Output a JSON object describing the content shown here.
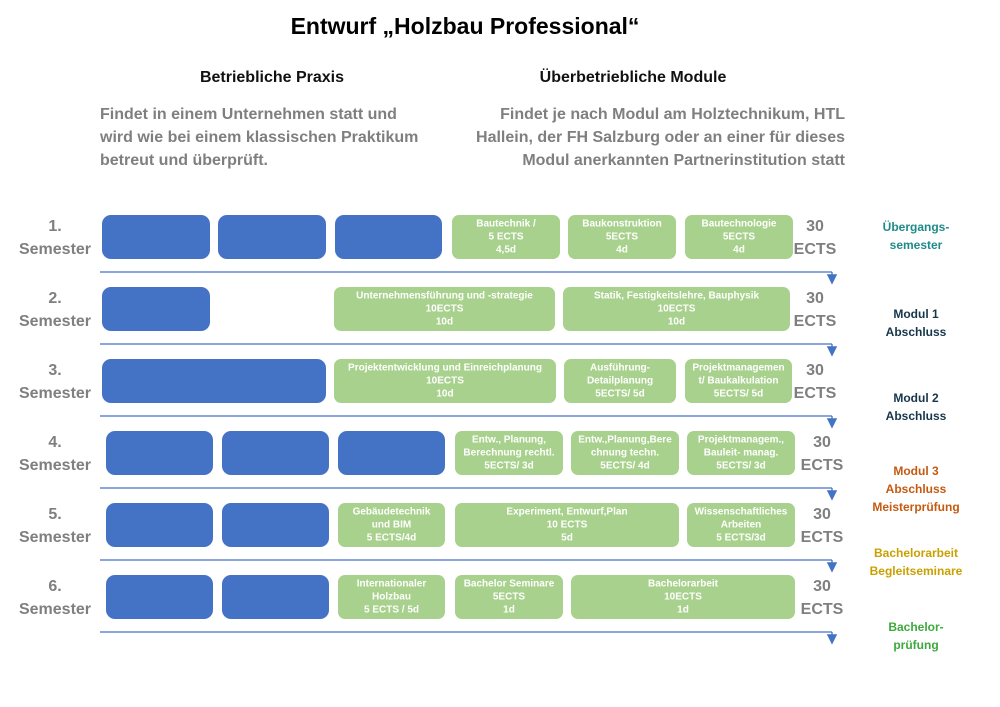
{
  "title": "Entwurf „Holzbau Professional“",
  "practice": {
    "heading": "Betriebliche Praxis",
    "description": [
      "Findet in einem Unternehmen statt und",
      "wird wie bei einem klassischen Praktikum",
      "betreut und überprüft."
    ]
  },
  "modules": {
    "heading": "Überbetriebliche Module",
    "description": [
      "Findet je nach Modul am Holztechnikum, HTL",
      "Hallein, der FH Salzburg oder an einer für dieses",
      "Modul anerkannten Partnerinstitution statt"
    ]
  },
  "rows": [
    {
      "semester": [
        "1.",
        "Semester"
      ],
      "modules": [
        [
          "Bautechnik /",
          "5 ECTS",
          "4,5d"
        ],
        [
          "Baukonstruktion",
          "5ECTS",
          "4d"
        ],
        [
          "Bautechnologie",
          "5ECTS",
          "4d"
        ]
      ],
      "ects": [
        "30",
        "ECTS"
      ],
      "note": [
        "Übergangs-",
        "semester"
      ]
    },
    {
      "semester": [
        "2.",
        "Semester"
      ],
      "modules": [
        [
          "Unternehmensführung und -strategie",
          "10ECTS",
          "10d"
        ],
        [
          "Statik, Festigkeitslehre, Bauphysik",
          "10ECTS",
          "10d"
        ]
      ],
      "ects": [
        "30",
        "ECTS"
      ],
      "note": [
        "Modul 1",
        "Abschluss"
      ]
    },
    {
      "semester": [
        "3.",
        "Semester"
      ],
      "modules": [
        [
          "Projektentwicklung und Einreichplanung",
          "10ECTS",
          "10d"
        ],
        [
          "Ausführung-",
          "Detailplanung",
          "5ECTS/ 5d"
        ],
        [
          "Projektmanagemen",
          "t/ Baukalkulation",
          "5ECTS/ 5d"
        ]
      ],
      "ects": [
        "30",
        "ECTS"
      ],
      "note": [
        "Modul 2",
        "Abschluss"
      ]
    },
    {
      "semester": [
        "4.",
        "Semester"
      ],
      "modules": [
        [
          "Entw., Planung,",
          "Berechnung rechtl.",
          "5ECTS/ 3d"
        ],
        [
          "Entw.,Planung,Bere",
          "chnung techn.",
          "5ECTS/ 4d"
        ],
        [
          "Projektmanagem.,",
          "Bauleit- manag.",
          "5ECTS/ 3d"
        ]
      ],
      "ects": [
        "30",
        "ECTS"
      ],
      "note": [
        "Modul 3",
        "Abschluss",
        "Meisterprüfung"
      ]
    },
    {
      "semester": [
        "5.",
        "Semester"
      ],
      "modules": [
        [
          "Gebäudetechnik",
          "und BIM",
          "5 ECTS/4d"
        ],
        [
          "Experiment, Entwurf,Plan",
          "10 ECTS",
          "5d"
        ],
        [
          "Wissenschaftliches",
          "Arbeiten",
          "5 ECTS/3d"
        ]
      ],
      "ects": [
        "30",
        "ECTS"
      ],
      "note": [
        "Bachelorarbeit",
        "Begleitseminare"
      ]
    },
    {
      "semester": [
        "6.",
        "Semester"
      ],
      "modules": [
        [
          "Internationaler",
          "Holzbau",
          "5 ECTS / 5d"
        ],
        [
          "Bachelor Seminare",
          "5ECTS",
          "1d"
        ],
        [
          "Bachelorarbeit",
          "10ECTS",
          "1d"
        ]
      ],
      "ects": [
        "30",
        "ECTS"
      ],
      "note": [
        "Bachelor-",
        "prüfung"
      ]
    }
  ]
}
